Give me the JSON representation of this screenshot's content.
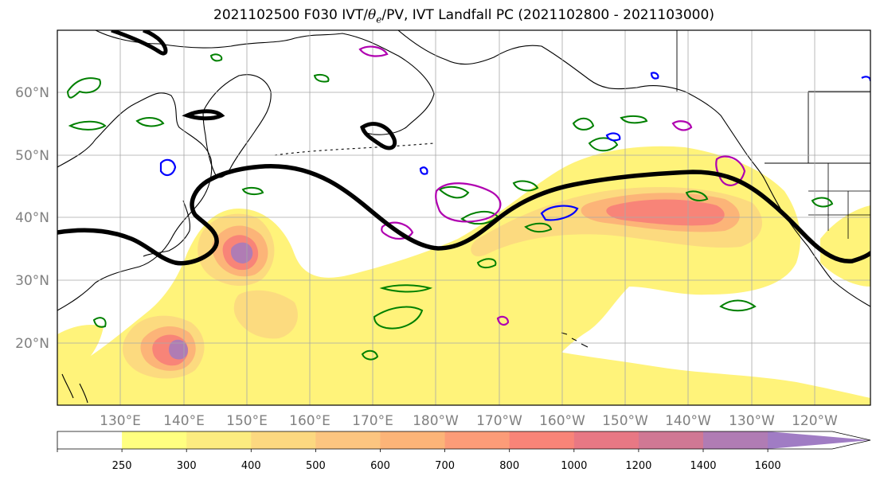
{
  "title": {
    "prefix": "2021102500 F030 IVT/",
    "theta": "θ",
    "subscript": "e",
    "suffix": "/PV, IVT Landfall PC (2021102800 - 2021103000)"
  },
  "map": {
    "lat_labels": [
      "60°N",
      "50°N",
      "40°N",
      "30°N",
      "20°N"
    ],
    "lon_labels": [
      "130°E",
      "140°E",
      "150°E",
      "160°E",
      "170°E",
      "180°W",
      "170°W",
      "160°W",
      "150°W",
      "140°W",
      "130°W",
      "120°W"
    ],
    "contour_colors": {
      "pv_line": "#000000",
      "theta_e_green": "#008000",
      "blue": "#0000ff",
      "magenta": "#b000b0",
      "coastline": "#000000"
    }
  },
  "colorbar": {
    "labels": [
      "250",
      "300",
      "400",
      "500",
      "600",
      "700",
      "800",
      "1000",
      "1200",
      "1400",
      "1600"
    ],
    "colors": [
      "#ffffff",
      "#ffff80",
      "#fcec80",
      "#fcd880",
      "#fcc580",
      "#fcb478",
      "#fc9c78",
      "#f88478",
      "#e87884",
      "#d07894",
      "#b07cb4",
      "#a07cc4"
    ]
  }
}
